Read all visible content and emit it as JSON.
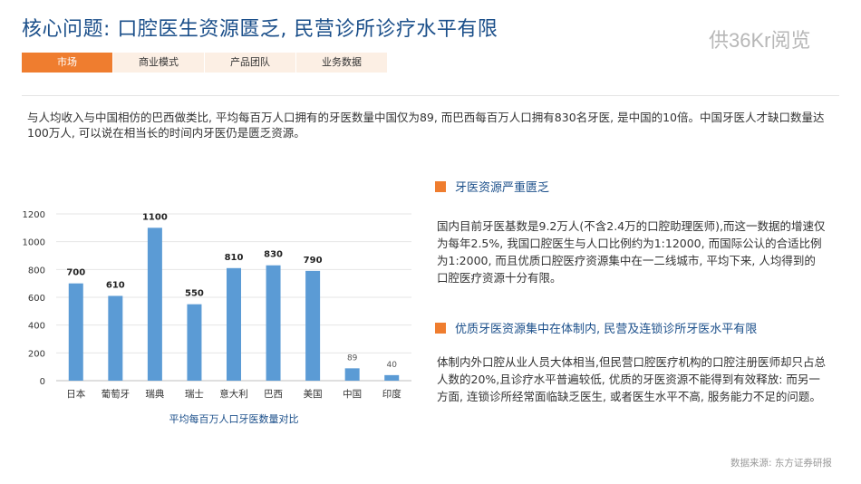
{
  "header": {
    "title": "核心问题: 口腔医生资源匮乏, 民营诊所诊疗水平有限",
    "watermark": "供36Kr阅览"
  },
  "tabs": [
    {
      "label": "市场",
      "active": true
    },
    {
      "label": "商业模式",
      "active": false
    },
    {
      "label": "产品团队",
      "active": false
    },
    {
      "label": "业务数据",
      "active": false
    }
  ],
  "intro": "与人均收入与中国相仿的巴西做类比, 平均每百万人口拥有的牙医数量中国仅为89, 而巴西每百万人口拥有830名牙医, 是中国的10倍。中国牙医人才缺口数量达100万人, 可以说在相当长的时间内牙医仍是匮乏资源。",
  "chart_data": {
    "type": "bar",
    "title": "",
    "xlabel": "平均每百万人口牙医数量对比",
    "ylabel": "",
    "categories": [
      "日本",
      "葡萄牙",
      "瑞典",
      "瑞士",
      "意大利",
      "巴西",
      "美国",
      "中国",
      "印度"
    ],
    "values": [
      700,
      610,
      1100,
      550,
      810,
      830,
      790,
      89,
      40
    ],
    "value_labels": [
      "700",
      "610",
      "1100",
      "550",
      "810",
      "830",
      "790",
      "89",
      "40"
    ],
    "yticks": [
      "0",
      "200",
      "400",
      "600",
      "800",
      "1000",
      "1200"
    ],
    "ylim": [
      0,
      1200
    ],
    "grid": true,
    "bar_color": "#5b9bd5"
  },
  "sections": [
    {
      "title": "牙医资源严重匮乏",
      "body": "国内目前牙医基数是9.2万人(不含2.4万的口腔助理医师),而这一数据的增速仅为每年2.5%, 我国口腔医生与人口比例约为1:12000, 而国际公认的合适比例为1:2000, 而且优质口腔医疗资源集中在一二线城市, 平均下来, 人均得到的口腔医疗资源十分有限。"
    },
    {
      "title": "优质牙医资源集中在体制内, 民营及连锁诊所牙医水平有限",
      "body": "体制内外口腔从业人员大体相当,但民营口腔医疗机构的口腔注册医师却只占总人数的20%,且诊疗水平普遍较低, 优质的牙医资源不能得到有效释放: 而另一方面, 连锁诊所经常面临缺乏医生, 或者医生水平不高, 服务能力不足的问题。"
    }
  ],
  "source": "数据来源: 东方证券研报",
  "colors": {
    "accent": "#ef7d2f",
    "title": "#1b4f8a",
    "tab_bg": "#fcefe4"
  }
}
